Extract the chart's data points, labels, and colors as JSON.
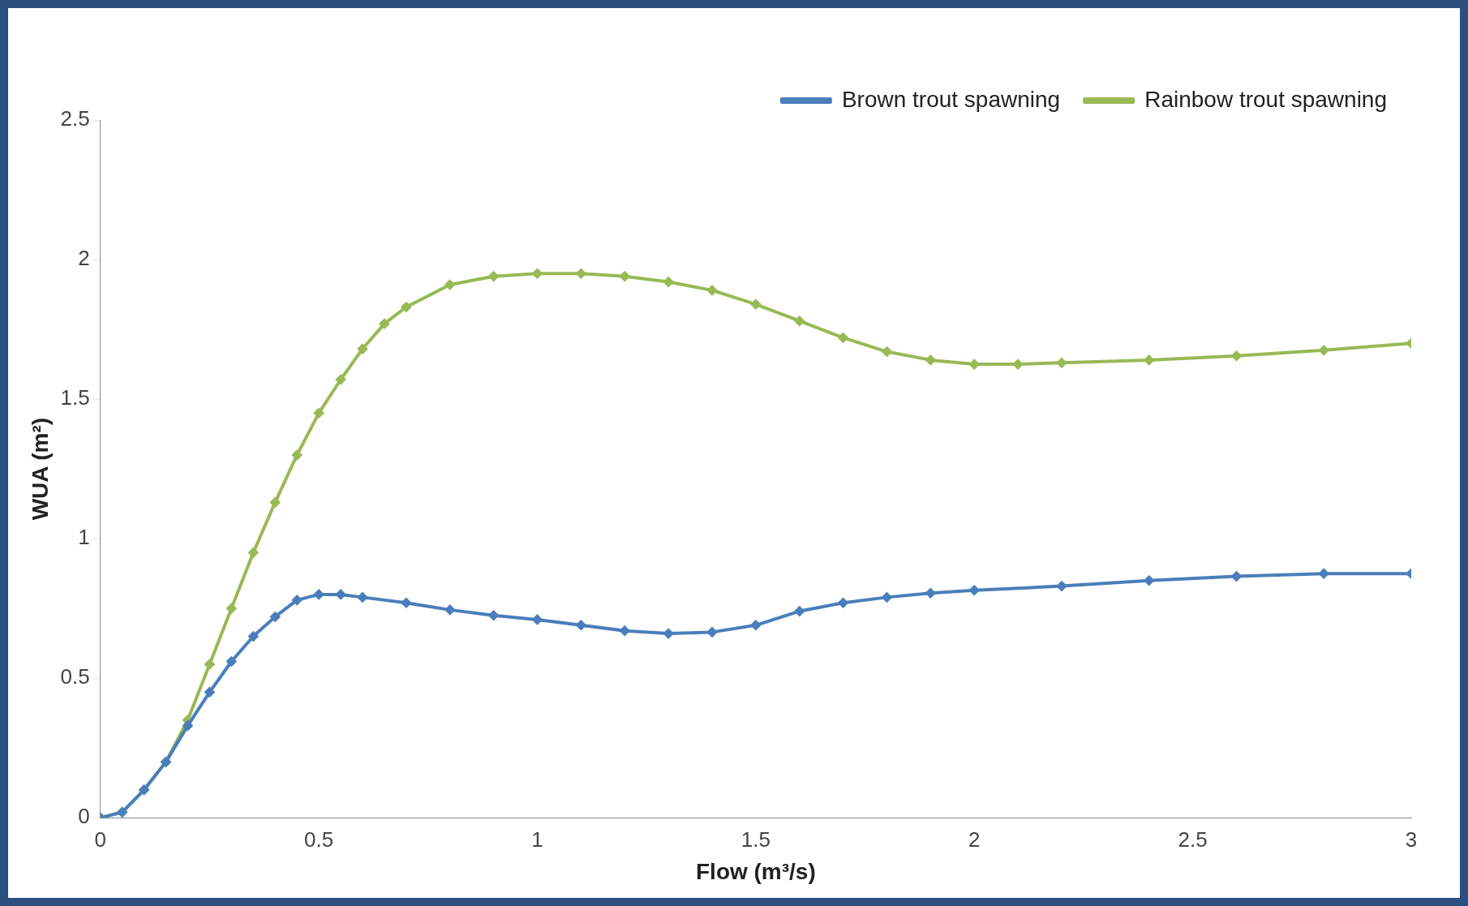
{
  "chart_data": {
    "type": "line",
    "xlabel": "Flow (m³/s)",
    "ylabel": "WUA (m²)",
    "xlim": [
      0,
      3
    ],
    "xticks": [
      0,
      0.5,
      1,
      1.5,
      2,
      2.5,
      3
    ],
    "ylim": [
      0,
      2.5
    ],
    "yticks": [
      0,
      0.5,
      1,
      1.5,
      2,
      2.5
    ],
    "grid": false,
    "legend": "top right",
    "marker": "diamond",
    "line_style": "solid",
    "series": [
      {
        "name": "Brown trout spawning",
        "color": "#4a7ebb",
        "x": [
          0,
          0.05,
          0.1,
          0.15,
          0.2,
          0.25,
          0.3,
          0.35,
          0.4,
          0.45,
          0.5,
          0.55,
          0.6,
          0.7,
          0.8,
          0.9,
          1.0,
          1.1,
          1.2,
          1.3,
          1.4,
          1.5,
          1.6,
          1.7,
          1.8,
          1.9,
          2.0,
          2.2,
          2.4,
          2.6,
          2.8,
          3.0
        ],
        "values": [
          0,
          0.02,
          0.1,
          0.2,
          0.33,
          0.45,
          0.56,
          0.65,
          0.72,
          0.78,
          0.8,
          0.8,
          0.79,
          0.77,
          0.745,
          0.725,
          0.71,
          0.69,
          0.67,
          0.66,
          0.665,
          0.69,
          0.74,
          0.77,
          0.79,
          0.805,
          0.815,
          0.83,
          0.85,
          0.865,
          0.875,
          0.875
        ]
      },
      {
        "name": "Rainbow trout spawning",
        "color": "#98b954",
        "x": [
          0,
          0.05,
          0.1,
          0.15,
          0.2,
          0.25,
          0.3,
          0.35,
          0.4,
          0.45,
          0.5,
          0.55,
          0.6,
          0.65,
          0.7,
          0.8,
          0.9,
          1.0,
          1.1,
          1.2,
          1.3,
          1.4,
          1.5,
          1.6,
          1.7,
          1.8,
          1.9,
          2.0,
          2.1,
          2.2,
          2.4,
          2.6,
          2.8,
          3.0
        ],
        "values": [
          0,
          0.02,
          0.1,
          0.2,
          0.35,
          0.55,
          0.75,
          0.95,
          1.13,
          1.3,
          1.45,
          1.57,
          1.68,
          1.77,
          1.83,
          1.91,
          1.94,
          1.95,
          1.95,
          1.94,
          1.92,
          1.89,
          1.84,
          1.78,
          1.72,
          1.67,
          1.64,
          1.625,
          1.625,
          1.63,
          1.64,
          1.655,
          1.675,
          1.7
        ]
      }
    ]
  }
}
